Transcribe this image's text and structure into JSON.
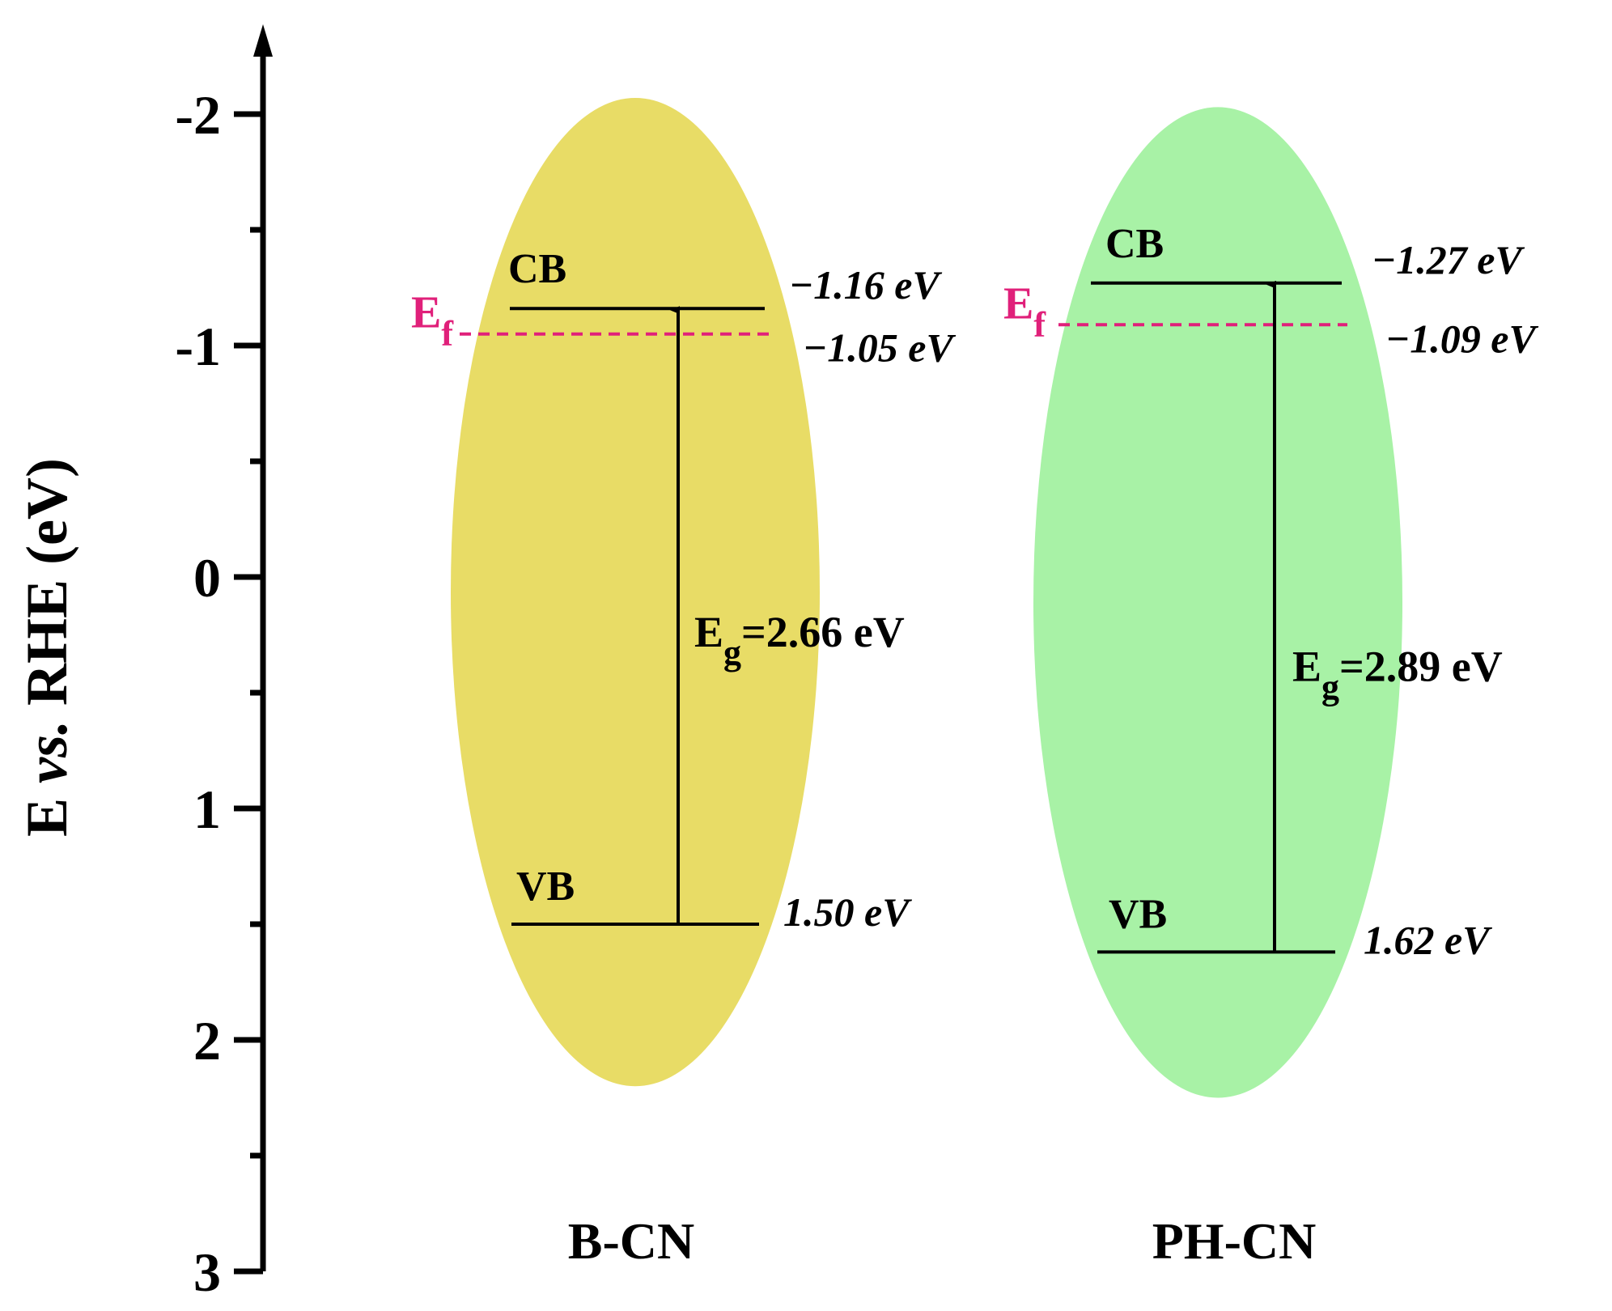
{
  "chart_data": {
    "type": "band-diagram",
    "ylabel": "E vs. RHE (eV)",
    "ylabel_parts": [
      "E ",
      "vs.",
      " RHE (eV)"
    ],
    "ylim": [
      -2.5,
      3
    ],
    "y_inverted": true,
    "yticks": [
      -2,
      -1,
      0,
      1,
      2,
      3
    ],
    "ytick_labels": [
      "-2",
      "-1",
      "0",
      "1",
      "2",
      "3"
    ],
    "minor_ticks": [
      -1.5,
      -0.5,
      0.5,
      1.5,
      2.5
    ],
    "samples": [
      {
        "name": "B-CN",
        "color": "#E8DC66",
        "ellipse_range": [
          -2.07,
          2.2
        ],
        "cb": -1.16,
        "cb_label": "−1.16 eV",
        "ef": -1.05,
        "ef_label": "−1.05 eV",
        "vb": 1.5,
        "vb_label": "1.50 eV",
        "eg_text": "=2.66 eV",
        "cb_text": "CB",
        "vb_text": "VB"
      },
      {
        "name": "PH-CN",
        "color": "#A8F2A6",
        "ellipse_range": [
          -2.03,
          2.25
        ],
        "cb": -1.27,
        "cb_label": "−1.27 eV",
        "ef": -1.09,
        "ef_label": "−1.09 eV",
        "vb": 1.62,
        "vb_label": "1.62 eV",
        "eg_text": "=2.89 eV",
        "cb_text": "CB",
        "vb_text": "VB"
      }
    ],
    "ef_text": {
      "main": "E",
      "sub": "f"
    },
    "eg_symbol": {
      "main": "E",
      "sub": "g"
    },
    "ef_color": "#E0207A"
  }
}
